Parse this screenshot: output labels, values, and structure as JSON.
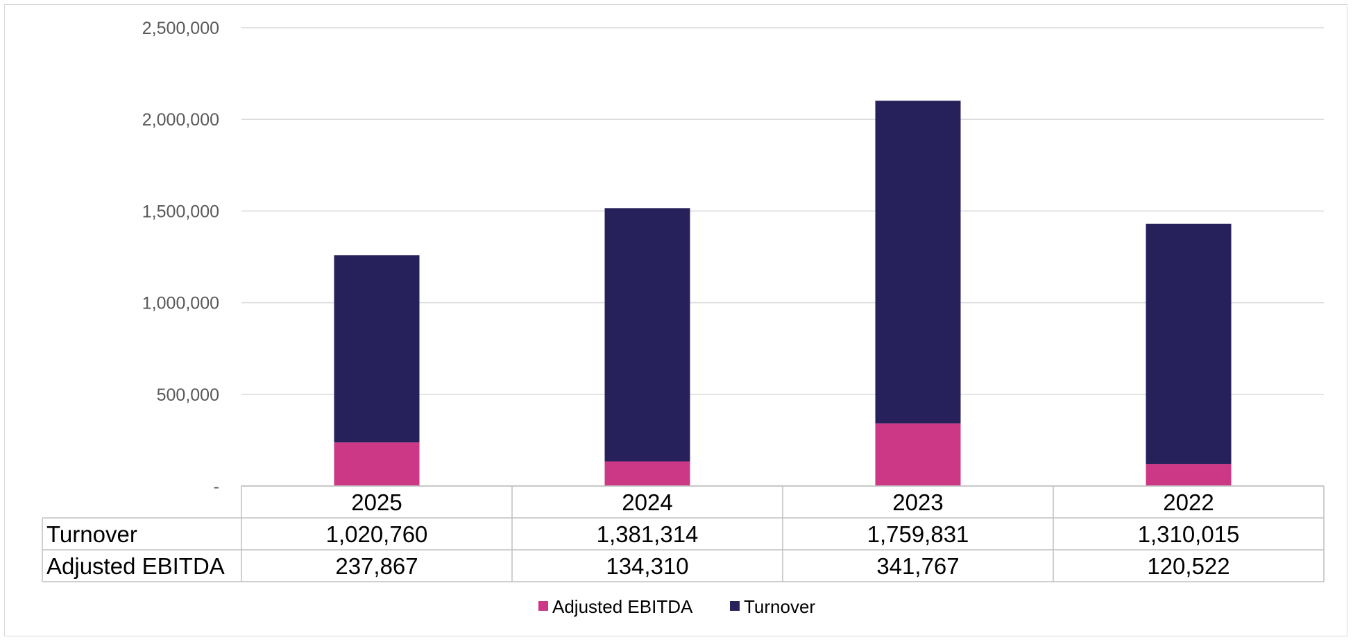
{
  "chart_data": {
    "type": "bar",
    "stacked": true,
    "categories": [
      "2025",
      "2024",
      "2023",
      "2022"
    ],
    "series": [
      {
        "name": "Adjusted EBITDA",
        "values": [
          237867,
          134310,
          341767,
          120522
        ],
        "color": "#cc3886"
      },
      {
        "name": "Turnover",
        "values": [
          1020760,
          1381314,
          1759831,
          1310015
        ],
        "color": "#26215b"
      }
    ],
    "ylim": [
      0,
      2500000
    ],
    "y_ticks": [
      0,
      500000,
      1000000,
      1500000,
      2000000,
      2500000
    ],
    "y_tick_labels": [
      "-",
      "500,000",
      "1,000,000",
      "1,500,000",
      "2,000,000",
      "2,500,000"
    ],
    "title": "",
    "xlabel": "",
    "ylabel": "",
    "grid": true,
    "legend": "bottom",
    "data_table": {
      "rows": [
        {
          "label": "Turnover",
          "values": [
            "1,020,760",
            "1,381,314",
            "1,759,831",
            "1,310,015"
          ]
        },
        {
          "label": "Adjusted EBITDA",
          "values": [
            "237,867",
            "134,310",
            "341,767",
            "120,522"
          ]
        }
      ]
    },
    "colors": {
      "gridline": "#d9d9d9",
      "table_border": "#bfbfbf",
      "tick_text": "#595959"
    }
  }
}
